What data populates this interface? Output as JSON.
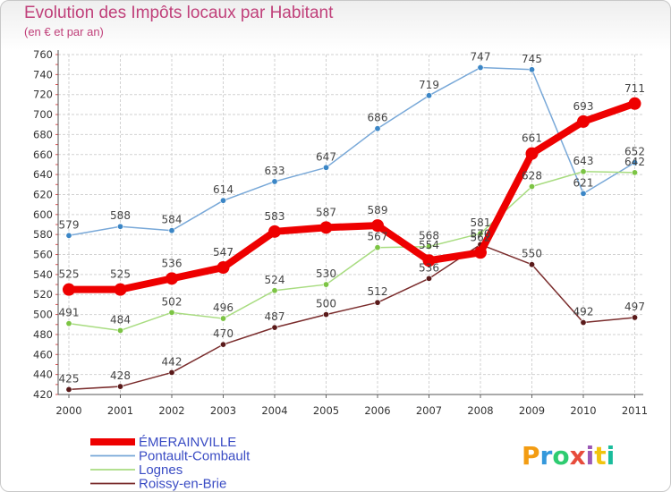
{
  "chart_data": {
    "type": "line",
    "title": "Evolution des Impôts locaux par Habitant",
    "subtitle": "(en € et par an)",
    "xlabel": "",
    "ylabel": "",
    "x": [
      "2000",
      "2001",
      "2002",
      "2003",
      "2004",
      "2005",
      "2006",
      "2007",
      "2008",
      "2009",
      "2010",
      "2011"
    ],
    "ylim": [
      420,
      760
    ],
    "yticks": [
      420,
      440,
      460,
      480,
      500,
      520,
      540,
      560,
      580,
      600,
      620,
      640,
      660,
      680,
      700,
      720,
      740,
      760
    ],
    "grid": true,
    "legend_position": "bottom-left",
    "series": [
      {
        "name": "Pontault-Combault",
        "color": "#78a8d8",
        "marker": "#3b86c6",
        "width": 1.5,
        "values": [
          579,
          588,
          584,
          614,
          633,
          647,
          686,
          719,
          747,
          745,
          621,
          652
        ]
      },
      {
        "name": "Lognes",
        "color": "#a8dc80",
        "marker": "#7cc444",
        "width": 1.5,
        "values": [
          491,
          484,
          502,
          496,
          524,
          530,
          567,
          568,
          581,
          628,
          643,
          642
        ]
      },
      {
        "name": "Roissy-en-Brie",
        "color": "#7a2c2c",
        "marker": "#5a1a1a",
        "width": 1.5,
        "values": [
          425,
          428,
          442,
          470,
          487,
          500,
          512,
          536,
          570,
          550,
          492,
          497
        ]
      },
      {
        "name": "ÉMERAINVILLE",
        "color": "#ee0000",
        "marker": "#ee0000",
        "width": 8,
        "values": [
          525,
          525,
          536,
          547,
          583,
          587,
          589,
          554,
          562,
          661,
          693,
          711
        ]
      }
    ],
    "data_labels": {
      "Pontault-Combault": [
        "579",
        "588",
        "584",
        "614",
        "633",
        "647",
        "686",
        "719",
        "747",
        "745",
        "621",
        "652"
      ],
      "Lognes": [
        "491",
        "484",
        "502",
        "496",
        "524",
        "530",
        "567",
        "568",
        "581",
        "628",
        "643",
        "642"
      ],
      "Roissy-en-Brie": [
        "425",
        "428",
        "442",
        "470",
        "487",
        "500",
        "512",
        "536",
        "570",
        "550",
        "492",
        "497"
      ],
      "ÉMERAINVILLE": [
        "525",
        "525",
        "536",
        "547",
        "583",
        "587",
        "589",
        "554",
        "562",
        "661",
        "693",
        "711"
      ]
    },
    "legend_order": [
      "ÉMERAINVILLE",
      "Pontault-Combault",
      "Lognes",
      "Roissy-en-Brie"
    ]
  },
  "branding": {
    "logo_letters": [
      "P",
      "r",
      "o",
      "x",
      "i",
      "t",
      "i"
    ],
    "logo_colors": [
      "#f39c12",
      "#3498db",
      "#2ecc71",
      "#e74c3c",
      "#9b59b6",
      "#f1c40f",
      "#1abc9c"
    ]
  }
}
